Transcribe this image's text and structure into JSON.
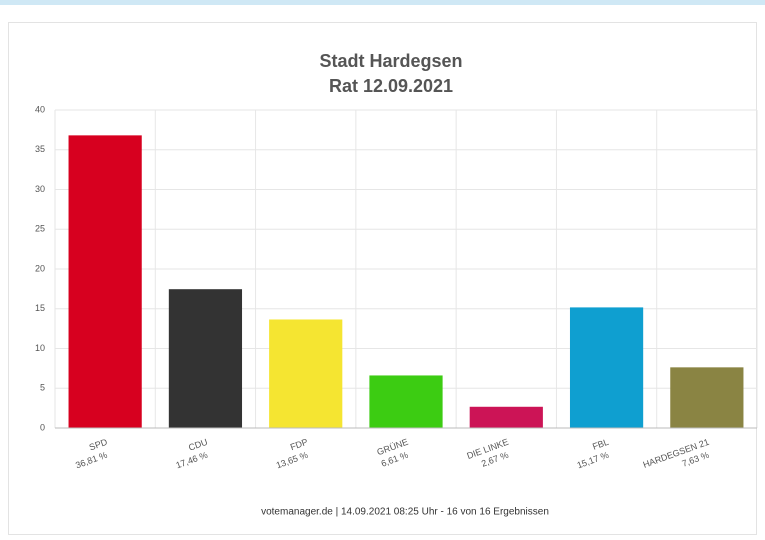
{
  "chart_data": {
    "type": "bar",
    "title": "Stadt Hardegsen",
    "subtitle": "Rat 12.09.2021",
    "categories": [
      "SPD",
      "CDU",
      "FDP",
      "GRÜNE",
      "DIE LINKE",
      "FBL",
      "HARDEGSEN 21"
    ],
    "values": [
      36.81,
      17.46,
      13.65,
      6.61,
      2.67,
      15.17,
      7.63
    ],
    "value_labels": [
      "36,81 %",
      "17,46 %",
      "13,65 %",
      "6,61 %",
      "2,67 %",
      "15,17 %",
      "7,63 %"
    ],
    "colors": [
      "#d7001f",
      "#333333",
      "#f5e531",
      "#3ccc12",
      "#cc1456",
      "#0f9fd0",
      "#8a8443"
    ],
    "ylim": [
      0,
      40
    ],
    "yticks": [
      0,
      5,
      10,
      15,
      20,
      25,
      30,
      35,
      40
    ],
    "grid": true,
    "footer": "votemanager.de | 14.09.2021 08:25 Uhr - 16 von 16 Ergebnissen"
  }
}
